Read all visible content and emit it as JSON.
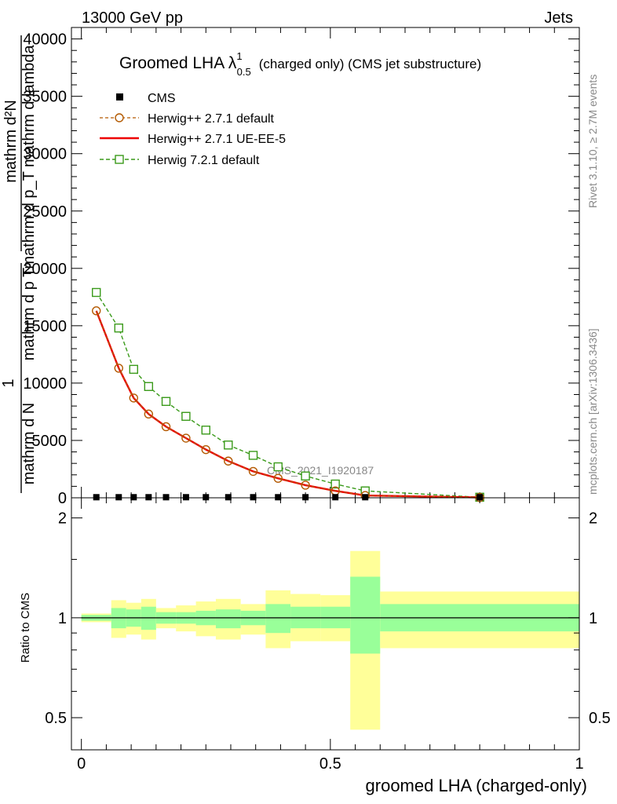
{
  "header": {
    "left": "13000 GeV pp",
    "right": "Jets"
  },
  "side_labels": {
    "rivet": "Rivet 3.1.10, ≥ 2.7M events",
    "mcplots": "mcplots.cern.ch [arXiv:1306.3436]"
  },
  "watermark": "CMS_2021_I1920187",
  "colors": {
    "cms": "#000000",
    "herwig_default": "#b35900",
    "herwig_ueee5": "#ee0000",
    "herwig721": "#3a9a1a",
    "band_inner": "#99ff99",
    "band_outer": "#ffff99"
  },
  "chart_data": [
    {
      "type": "line",
      "title": "Groomed LHA",
      "title_symbol": "λ",
      "title_sup": "1",
      "title_sub": "0.5",
      "title_suffix": "(charged only) (CMS jet substructure)",
      "ylabel_parts": [
        "1",
        "mathrm d N",
        "mathrm d p",
        "T",
        "mathrm d p",
        "T",
        "mathrm d lambda",
        "mathrm d",
        "2",
        "N"
      ],
      "ylabel_top": "mathrm d²N",
      "ylabel_mid": "mathrm d p_T mathrm d lambda",
      "ylabel_bottom": "mathrm d N",
      "ylabel_lead": "1",
      "ylim": [
        0,
        41000
      ],
      "xlim": [
        -0.02,
        1.0
      ],
      "yticks": [
        0,
        5000,
        10000,
        15000,
        20000,
        25000,
        30000,
        35000,
        40000
      ],
      "ytick_labels": [
        "0",
        "5000",
        "10000",
        "15000",
        "20000",
        "25000",
        "30000",
        "35000",
        "40000"
      ],
      "legend_position": "top-left",
      "series": [
        {
          "name": "CMS",
          "marker": "square",
          "x": [
            0.03,
            0.075,
            0.105,
            0.135,
            0.17,
            0.21,
            0.25,
            0.295,
            0.345,
            0.395,
            0.45,
            0.51,
            0.57,
            0.8
          ],
          "y": [
            50,
            50,
            50,
            50,
            50,
            50,
            50,
            50,
            50,
            50,
            50,
            50,
            50,
            50
          ]
        },
        {
          "name": "Herwig++ 2.7.1 default",
          "marker": "circle",
          "x": [
            0.03,
            0.075,
            0.105,
            0.135,
            0.17,
            0.21,
            0.25,
            0.295,
            0.345,
            0.395,
            0.45,
            0.51,
            0.57,
            0.8
          ],
          "y": [
            16300,
            11300,
            8700,
            7300,
            6200,
            5200,
            4200,
            3200,
            2300,
            1700,
            1100,
            600,
            200,
            30
          ]
        },
        {
          "name": "Herwig++ 2.7.1 UE-EE-5",
          "marker": "none",
          "x": [
            0.03,
            0.075,
            0.105,
            0.135,
            0.17,
            0.21,
            0.25,
            0.295,
            0.345,
            0.395,
            0.45,
            0.51,
            0.57,
            0.8
          ],
          "y": [
            16300,
            11300,
            8700,
            7300,
            6200,
            5200,
            4200,
            3200,
            2300,
            1700,
            1100,
            600,
            200,
            30
          ]
        },
        {
          "name": "Herwig 7.2.1 default",
          "marker": "square-open",
          "x": [
            0.03,
            0.075,
            0.105,
            0.135,
            0.17,
            0.21,
            0.25,
            0.295,
            0.345,
            0.395,
            0.45,
            0.51,
            0.57,
            0.8
          ],
          "y": [
            17900,
            14800,
            11200,
            9700,
            8400,
            7100,
            5900,
            4600,
            3700,
            2700,
            1900,
            1200,
            600,
            50
          ]
        }
      ]
    },
    {
      "type": "area",
      "ylabel": "Ratio to CMS",
      "xlabel": "groomed LHA (charged-only)",
      "ylim": [
        0.4,
        2.3
      ],
      "ylog": true,
      "xlim": [
        -0.02,
        1.0
      ],
      "xticks": [
        0,
        0.5,
        1
      ],
      "xtick_labels": [
        "0",
        "0.5",
        "1"
      ],
      "yticks": [
        0.5,
        1,
        2
      ],
      "ytick_labels": [
        "0.5",
        "1",
        "2"
      ],
      "bin_edges": [
        0.0,
        0.06,
        0.09,
        0.12,
        0.15,
        0.19,
        0.23,
        0.27,
        0.32,
        0.37,
        0.42,
        0.48,
        0.54,
        0.6,
        1.0
      ],
      "band_inner_low": [
        0.98,
        0.93,
        0.94,
        0.92,
        0.96,
        0.96,
        0.95,
        0.93,
        0.95,
        0.9,
        0.93,
        0.93,
        0.78,
        0.91
      ],
      "band_inner_high": [
        1.02,
        1.07,
        1.06,
        1.08,
        1.04,
        1.04,
        1.05,
        1.06,
        1.05,
        1.1,
        1.08,
        1.08,
        1.33,
        1.1
      ],
      "band_outer_low": [
        0.97,
        0.87,
        0.89,
        0.86,
        0.93,
        0.91,
        0.88,
        0.86,
        0.89,
        0.81,
        0.85,
        0.85,
        0.46,
        0.81
      ],
      "band_outer_high": [
        1.03,
        1.13,
        1.11,
        1.14,
        1.07,
        1.09,
        1.12,
        1.14,
        1.1,
        1.21,
        1.18,
        1.17,
        1.59,
        1.2
      ],
      "reference": 1
    }
  ]
}
